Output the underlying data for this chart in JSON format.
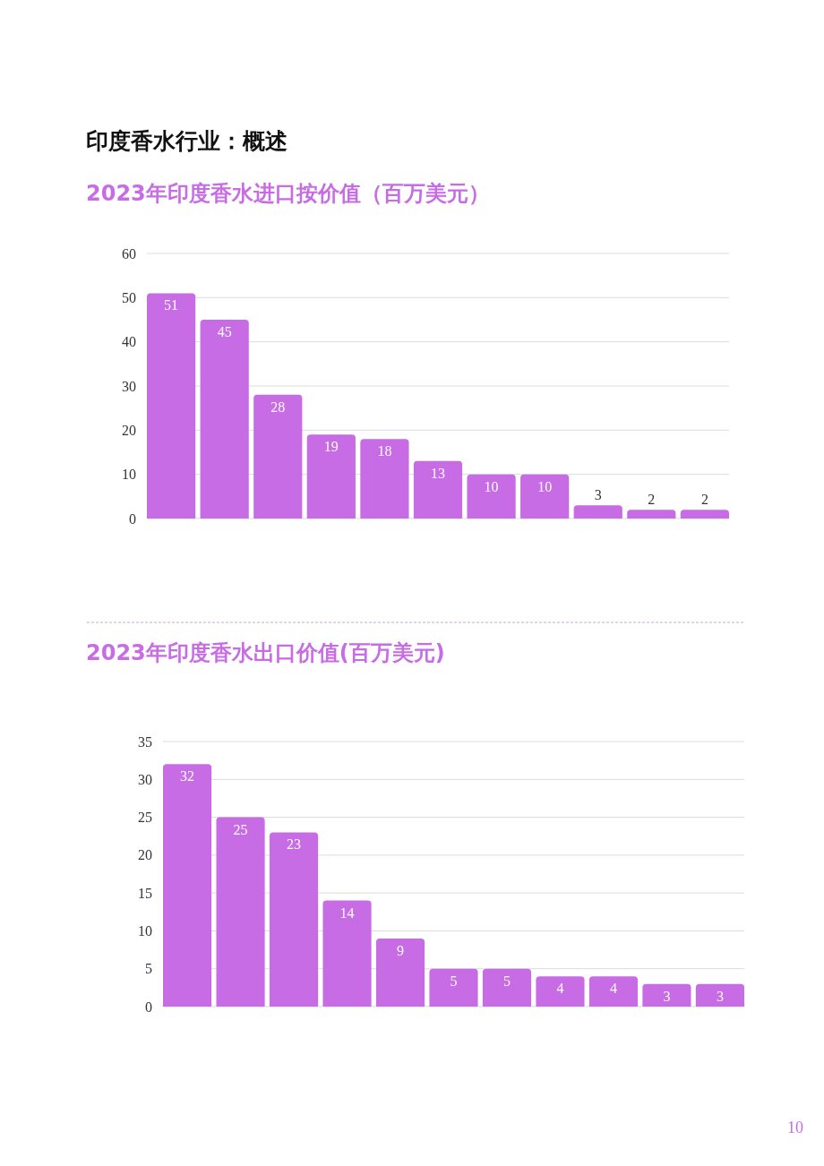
{
  "chart_data": [
    {
      "type": "bar",
      "title": "印度香水行业：概述",
      "subtitle": "2023年印度香水进口按价值（百万美元）",
      "categories": [
        null,
        null,
        null,
        null,
        null,
        null,
        null,
        null,
        null,
        null,
        null
      ],
      "values": [
        51,
        45,
        28,
        19,
        18,
        13,
        10,
        10,
        3,
        2,
        2
      ],
      "color": "#c86ce6",
      "ylim": [
        0,
        60
      ],
      "yticks": [
        0,
        10,
        20,
        30,
        40,
        50,
        60
      ],
      "grid": "y",
      "data_labels": true,
      "tick_labels": "y"
    },
    {
      "type": "bar",
      "title": "2023年印度香水出口价值(百万美元)",
      "categories": [
        null,
        null,
        null,
        null,
        null,
        null,
        null,
        null,
        null,
        null,
        null
      ],
      "values": [
        32,
        25,
        23,
        14,
        9,
        5,
        5,
        4,
        4,
        3,
        3
      ],
      "color": "#c86ce6",
      "ylim": [
        0,
        35
      ],
      "yticks": [
        0,
        5,
        10,
        15,
        20,
        25,
        30,
        35
      ],
      "grid": "y",
      "data_labels": true,
      "tick_labels": "y",
      "annotations": [
        "10"
      ]
    }
  ]
}
